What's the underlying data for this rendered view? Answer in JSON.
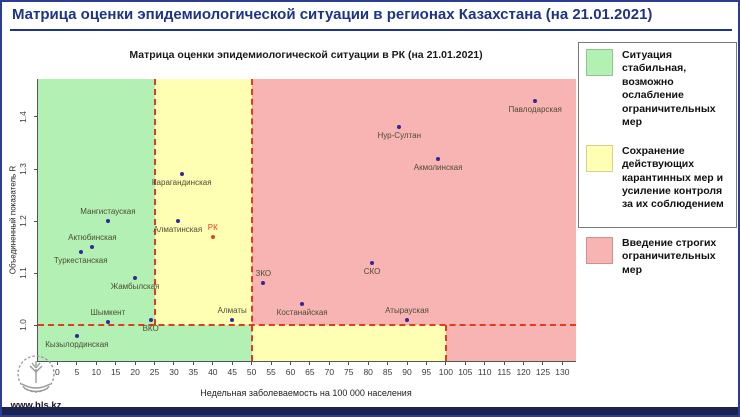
{
  "header": {
    "title": "Матрица оценки эпидемиологической ситуации в регионах Казахстана (на 21.01.2021)"
  },
  "footer": {
    "site": "www.hls.kz"
  },
  "legend": {
    "items": [
      {
        "color": "#b3f0b3",
        "label": "Ситуация стабильная, возможно ослабление ограничительных мер"
      },
      {
        "color": "#ffffb3",
        "label": "Сохранение действующих карантинных мер и усиление контроля за их соблюдением"
      },
      {
        "color": "#f8b3b3",
        "label": "Введение строгих ограничительных мер"
      }
    ]
  },
  "chart_data": {
    "type": "scatter",
    "title": "Матрица оценки эпидемиологической ситуации в РК (на 21.01.2021)",
    "xlabel": "Недельная заболеваемость на 100 000 населения",
    "ylabel": "Объединенный показатель R",
    "xlim": [
      -5,
      133.5
    ],
    "ylim": [
      0.931,
      1.473
    ],
    "x_ticks": [
      0,
      5,
      10,
      15,
      20,
      25,
      30,
      35,
      40,
      45,
      50,
      55,
      60,
      65,
      70,
      75,
      80,
      85,
      90,
      95,
      100,
      105,
      110,
      115,
      120,
      125,
      130
    ],
    "y_ticks": [
      "1.0",
      "1.1",
      "1.2",
      "1.3",
      "1.4"
    ],
    "grid": false,
    "legend_position": "right-outside",
    "zones": {
      "y_split": 1.0,
      "upper_x_splits": [
        25,
        50
      ],
      "lower_x_splits": [
        50,
        100
      ],
      "colors": {
        "green": "#b3f0b3",
        "yellow": "#ffffb3",
        "red": "#f8b3b3"
      },
      "boundary_line_color": "#e23b1e"
    },
    "point_color": "#32279c",
    "label_color": "#4d4d33",
    "points": [
      {
        "name": "Кызылординская",
        "x": 5,
        "y": 0.98,
        "label_pos": "below"
      },
      {
        "name": "Туркестанская",
        "x": 6,
        "y": 1.14,
        "label_pos": "below"
      },
      {
        "name": "Актюбинская",
        "x": 9,
        "y": 1.15,
        "label_pos": "above"
      },
      {
        "name": "Мангистауская",
        "x": 13,
        "y": 1.2,
        "label_pos": "above"
      },
      {
        "name": "Шымкент",
        "x": 13,
        "y": 1.005,
        "label_pos": "above"
      },
      {
        "name": "Жамбылская",
        "x": 20,
        "y": 1.09,
        "label_pos": "below"
      },
      {
        "name": "ВКО",
        "x": 24,
        "y": 1.01,
        "label_pos": "below"
      },
      {
        "name": "Алматинская",
        "x": 31,
        "y": 1.2,
        "label_pos": "below"
      },
      {
        "name": "Карагандинская",
        "x": 32,
        "y": 1.29,
        "label_pos": "below"
      },
      {
        "name": "РК",
        "x": 40,
        "y": 1.17,
        "label_pos": "above",
        "color": "#e8441f"
      },
      {
        "name": "Алматы",
        "x": 45,
        "y": 1.01,
        "label_pos": "above"
      },
      {
        "name": "ЗКО",
        "x": 53,
        "y": 1.08,
        "label_pos": "above"
      },
      {
        "name": "Костанайская",
        "x": 63,
        "y": 1.04,
        "label_pos": "below"
      },
      {
        "name": "СКО",
        "x": 81,
        "y": 1.12,
        "label_pos": "below"
      },
      {
        "name": "Атырауская",
        "x": 90,
        "y": 1.01,
        "label_pos": "above"
      },
      {
        "name": "Нур-Султан",
        "x": 88,
        "y": 1.38,
        "label_pos": "below"
      },
      {
        "name": "Акмолинская",
        "x": 98,
        "y": 1.32,
        "label_pos": "below"
      },
      {
        "name": "Павлодарская",
        "x": 123,
        "y": 1.43,
        "label_pos": "below"
      }
    ]
  }
}
